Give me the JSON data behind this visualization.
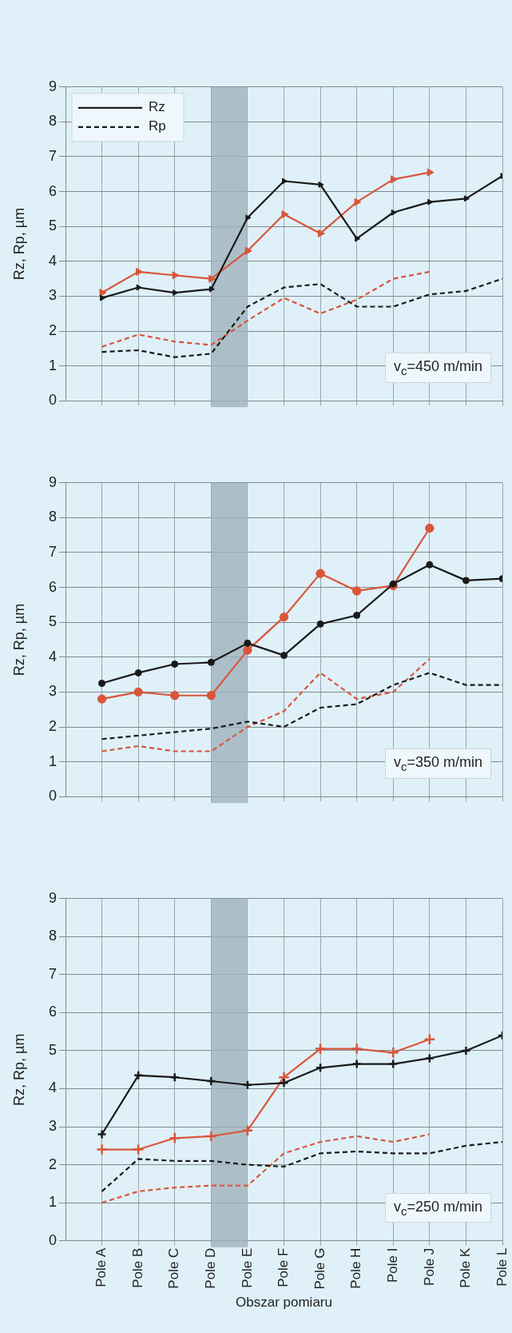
{
  "chart_data": [
    {
      "type": "line",
      "ylabel": "Rz, Rp, µm",
      "categories": [
        "Pole A",
        "Pole B",
        "Pole C",
        "Pole D",
        "Pole E",
        "Pole F",
        "Pole G",
        "Pole H",
        "Pole I",
        "Pole J",
        "Pole K",
        "Pole L"
      ],
      "ylim": [
        0,
        9
      ],
      "yticks": [
        0,
        1,
        2,
        3,
        4,
        5,
        6,
        7,
        8,
        9
      ],
      "grid": true,
      "legend": "top left",
      "tick_labels": "y",
      "bands": [
        {
          "axis": "x",
          "from": "Pole D",
          "to": "Pole E",
          "color": "#9fb3bd"
        }
      ],
      "annotations": [
        "v$_{c}$=450 m/min"
      ],
      "series": [
        {
          "name": "Rz",
          "color": "#1a1a1a",
          "marker": "triangle",
          "line_style": "solid",
          "values": [
            2.95,
            3.25,
            3.1,
            3.2,
            5.25,
            6.3,
            6.2,
            4.65,
            5.4,
            5.7,
            5.8,
            6.45
          ]
        },
        {
          "color": "#d9553a",
          "marker": "triangle",
          "line_style": "solid",
          "values": [
            3.1,
            3.7,
            3.6,
            3.5,
            4.3,
            5.35,
            4.8,
            5.7,
            6.35,
            6.55,
            null,
            null
          ]
        },
        {
          "name": "Rp",
          "color": "#1a1a1a",
          "marker": "none",
          "line_style": "dashed",
          "values": [
            1.4,
            1.45,
            1.25,
            1.35,
            2.7,
            3.25,
            3.35,
            2.7,
            2.7,
            3.05,
            3.15,
            3.5
          ]
        },
        {
          "color": "#d9553a",
          "marker": "none",
          "line_style": "dashed",
          "values": [
            1.55,
            1.9,
            1.7,
            1.6,
            2.3,
            2.95,
            2.5,
            2.9,
            3.5,
            3.7,
            null,
            null
          ]
        }
      ]
    },
    {
      "type": "line",
      "ylabel": "Rz, Rp, µm",
      "categories": [
        "Pole A",
        "Pole B",
        "Pole C",
        "Pole D",
        "Pole E",
        "Pole F",
        "Pole G",
        "Pole H",
        "Pole I",
        "Pole J",
        "Pole K",
        "Pole L"
      ],
      "ylim": [
        0,
        9
      ],
      "yticks": [
        0,
        1,
        2,
        3,
        4,
        5,
        6,
        7,
        8,
        9
      ],
      "grid": true,
      "tick_labels": "y",
      "bands": [
        {
          "axis": "x",
          "from": "Pole D",
          "to": "Pole E",
          "color": "#9fb3bd"
        }
      ],
      "annotations": [
        "v$_{c}$=350 m/min"
      ],
      "series": [
        {
          "color": "#1a1a1a",
          "marker": "circle",
          "line_style": "solid",
          "values": [
            3.25,
            3.55,
            3.8,
            3.85,
            4.4,
            4.05,
            4.95,
            5.2,
            6.1,
            6.65,
            6.2,
            6.25
          ]
        },
        {
          "color": "#d9553a",
          "marker": "circle",
          "line_style": "solid",
          "values": [
            2.8,
            3.0,
            2.9,
            2.9,
            4.2,
            5.15,
            6.4,
            5.9,
            6.05,
            7.7,
            null,
            null
          ]
        },
        {
          "color": "#1a1a1a",
          "marker": "none",
          "line_style": "dashed",
          "values": [
            1.65,
            1.75,
            1.85,
            1.95,
            2.15,
            2.0,
            2.55,
            2.65,
            3.2,
            3.55,
            3.2,
            3.2
          ]
        },
        {
          "color": "#d9553a",
          "marker": "none",
          "line_style": "dashed",
          "values": [
            1.3,
            1.45,
            1.3,
            1.3,
            2.0,
            2.45,
            3.55,
            2.8,
            3.0,
            3.95,
            null,
            null
          ]
        }
      ]
    },
    {
      "type": "line",
      "ylabel": "Rz, Rp, µm",
      "xlabel": "Obszar pomiaru",
      "categories": [
        "Pole A",
        "Pole B",
        "Pole C",
        "Pole D",
        "Pole E",
        "Pole F",
        "Pole G",
        "Pole H",
        "Pole I",
        "Pole J",
        "Pole K",
        "Pole L"
      ],
      "ylim": [
        0,
        9
      ],
      "yticks": [
        0,
        1,
        2,
        3,
        4,
        5,
        6,
        7,
        8,
        9
      ],
      "grid": true,
      "bands": [
        {
          "axis": "x",
          "from": "Pole D",
          "to": "Pole E",
          "color": "#9fb3bd"
        }
      ],
      "annotations": [
        "v$_{c}$=250 m/min"
      ],
      "series": [
        {
          "color": "#1a1a1a",
          "marker": "cross",
          "line_style": "solid",
          "values": [
            2.8,
            4.35,
            4.3,
            4.2,
            4.1,
            4.15,
            4.55,
            4.65,
            4.65,
            4.8,
            5.0,
            5.4
          ]
        },
        {
          "color": "#d9553a",
          "marker": "cross",
          "line_style": "solid",
          "values": [
            2.4,
            2.4,
            2.7,
            2.75,
            2.9,
            4.3,
            5.05,
            5.05,
            4.95,
            5.3,
            null,
            null
          ]
        },
        {
          "color": "#1a1a1a",
          "marker": "none",
          "line_style": "dashed",
          "values": [
            1.3,
            2.15,
            2.1,
            2.1,
            2.0,
            1.95,
            2.3,
            2.35,
            2.3,
            2.3,
            2.5,
            2.6
          ]
        },
        {
          "color": "#d9553a",
          "marker": "none",
          "line_style": "dashed",
          "values": [
            1.0,
            1.3,
            1.4,
            1.45,
            1.45,
            2.3,
            2.6,
            2.75,
            2.6,
            2.8,
            null,
            null
          ]
        }
      ]
    }
  ]
}
